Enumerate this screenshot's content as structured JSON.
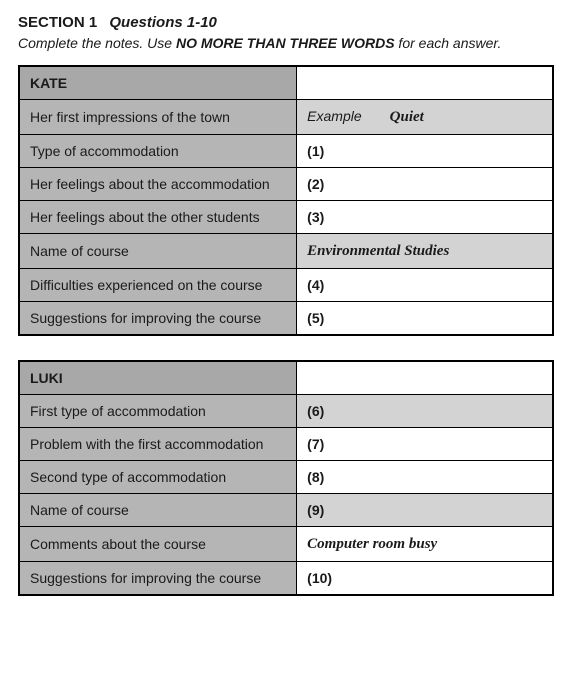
{
  "heading": {
    "label": "SECTION 1",
    "sub": "Questions 1-10"
  },
  "instruction": {
    "pre": "Complete the notes. Use ",
    "emph": "NO MORE THAN THREE WORDS",
    "post": " for each answer."
  },
  "table1": {
    "header": "KATE",
    "rows": [
      {
        "left": "Her first impressions of the town",
        "rightType": "example",
        "exampleLabel": "Example",
        "answer": "Quiet",
        "shaded": true
      },
      {
        "left": "Type of accommodation",
        "rightType": "num",
        "num": "(1)",
        "shaded": false
      },
      {
        "left": "Her feelings about the accommodation",
        "rightType": "num",
        "num": "(2)",
        "shaded": false
      },
      {
        "left": "Her feelings about the other students",
        "rightType": "num",
        "num": "(3)",
        "shaded": false
      },
      {
        "left": "Name of course",
        "rightType": "answer",
        "answer": "Environmental Studies",
        "shaded": true
      },
      {
        "left": "Difficulties experienced on the course",
        "rightType": "num",
        "num": "(4)",
        "shaded": false
      },
      {
        "left": "Suggestions for improving the course",
        "rightType": "num",
        "num": "(5)",
        "shaded": false
      }
    ]
  },
  "table2": {
    "header": "LUKI",
    "rows": [
      {
        "left": "First type of accommodation",
        "rightType": "num",
        "num": "(6)",
        "shaded": true
      },
      {
        "left": "Problem with the first accommodation",
        "rightType": "num",
        "num": "(7)",
        "shaded": false
      },
      {
        "left": "Second type of accommodation",
        "rightType": "num",
        "num": "(8)",
        "shaded": false
      },
      {
        "left": "Name of course",
        "rightType": "num",
        "num": "(9)",
        "shaded": true
      },
      {
        "left": "Comments about the course",
        "rightType": "answer",
        "answer": "Computer room busy",
        "shaded": false
      },
      {
        "left": "Suggestions for improving the course",
        "rightType": "num",
        "num": "(10)",
        "shaded": false
      }
    ]
  }
}
